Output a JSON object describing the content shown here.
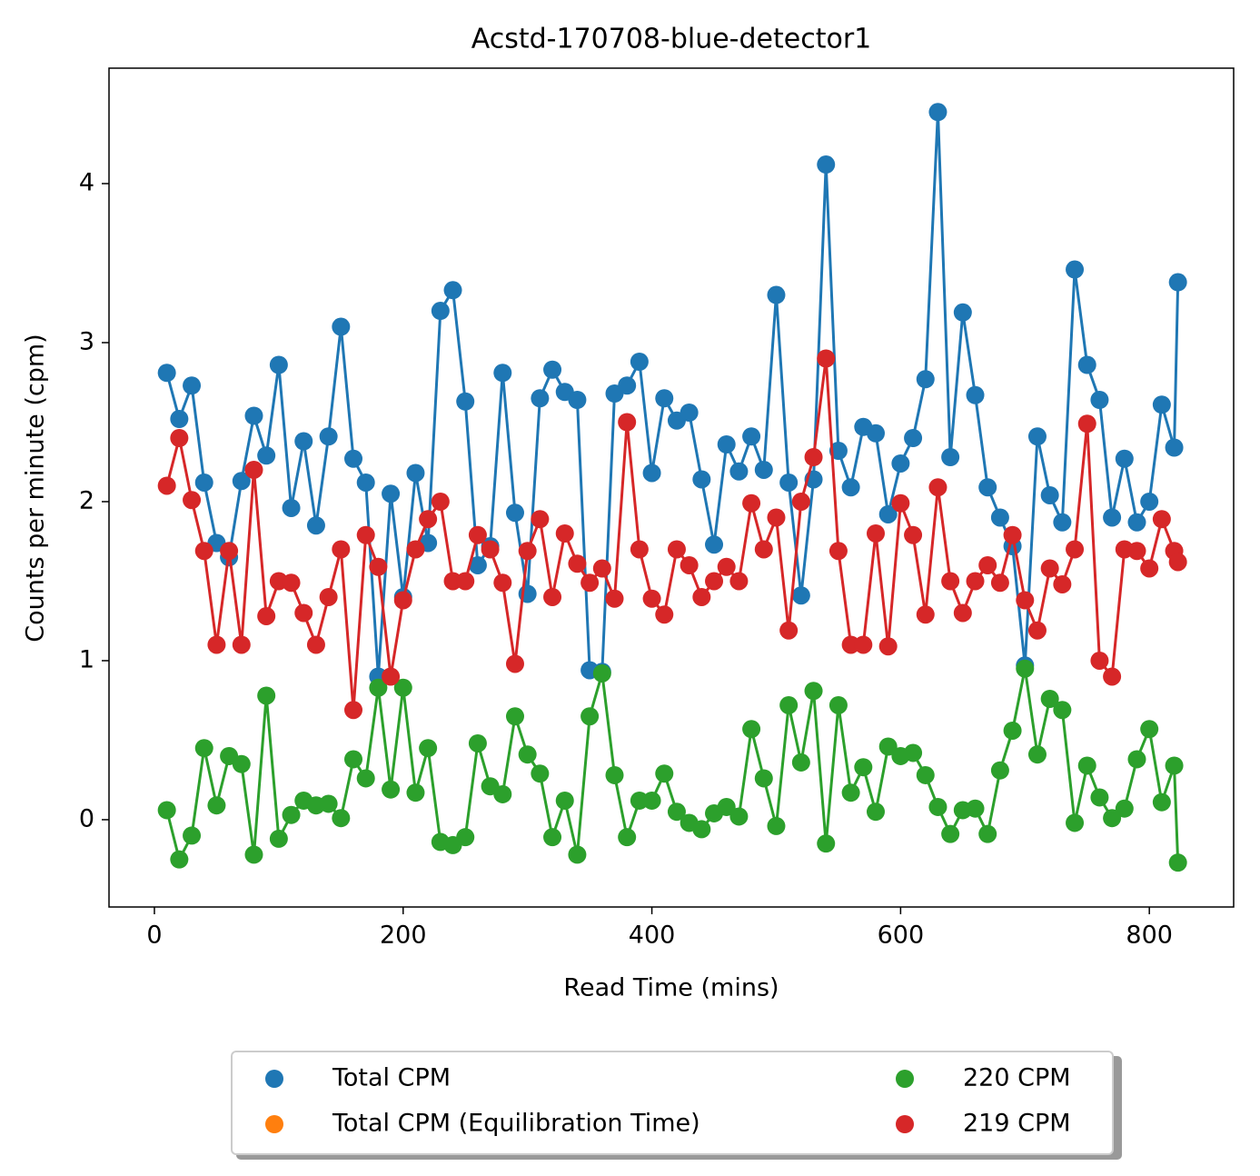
{
  "chart_data": {
    "type": "line",
    "title": "Acstd-170708-blue-detector1",
    "xlabel": "Read Time (mins)",
    "ylabel": "Counts per minute (cpm)",
    "x": [
      10,
      20,
      30,
      40,
      50,
      60,
      70,
      80,
      90,
      100,
      110,
      120,
      130,
      140,
      150,
      160,
      170,
      180,
      190,
      200,
      210,
      220,
      230,
      240,
      250,
      260,
      270,
      280,
      290,
      300,
      310,
      320,
      330,
      340,
      350,
      360,
      370,
      380,
      390,
      400,
      410,
      420,
      430,
      440,
      450,
      460,
      470,
      480,
      490,
      500,
      510,
      520,
      530,
      540,
      550,
      560,
      570,
      580,
      590,
      600,
      610,
      620,
      630,
      640,
      650,
      660,
      670,
      680,
      690,
      700,
      710,
      720,
      730,
      740,
      750,
      760,
      770,
      780,
      790,
      800,
      810,
      820,
      823
    ],
    "series": [
      {
        "name": "Total CPM",
        "color": "#1f77b4",
        "values": [
          2.81,
          2.52,
          2.73,
          2.12,
          1.74,
          1.65,
          2.13,
          2.54,
          2.29,
          2.86,
          1.96,
          2.38,
          1.85,
          2.41,
          3.1,
          2.27,
          2.12,
          0.9,
          2.05,
          1.4,
          2.18,
          1.74,
          3.2,
          3.33,
          2.63,
          1.6,
          1.72,
          2.81,
          1.93,
          1.42,
          2.65,
          2.83,
          2.69,
          2.64,
          0.94,
          0.93,
          2.68,
          2.73,
          2.88,
          2.18,
          2.65,
          2.51,
          2.56,
          2.14,
          1.73,
          2.36,
          2.19,
          2.41,
          2.2,
          3.3,
          2.12,
          1.41,
          2.14,
          4.12,
          2.32,
          2.09,
          2.47,
          2.43,
          1.92,
          2.24,
          2.4,
          2.77,
          4.45,
          2.28,
          3.19,
          2.67,
          2.09,
          1.9,
          1.72,
          0.97,
          2.41,
          2.04,
          1.87,
          3.46,
          2.86,
          2.64,
          1.9,
          2.27,
          1.87,
          2.0,
          2.61,
          2.34,
          3.38
        ]
      },
      {
        "name": "Total CPM (Equilibration Time)",
        "color": "#ff7f0e",
        "x": [],
        "values": []
      },
      {
        "name": "220 CPM",
        "color": "#2ca02c",
        "values": [
          0.06,
          -0.25,
          -0.1,
          0.45,
          0.09,
          0.4,
          0.35,
          -0.22,
          0.78,
          -0.12,
          0.03,
          0.12,
          0.09,
          0.1,
          0.01,
          0.38,
          0.26,
          0.83,
          0.19,
          0.83,
          0.17,
          0.45,
          -0.14,
          -0.16,
          -0.11,
          0.48,
          0.21,
          0.16,
          0.65,
          0.41,
          0.29,
          -0.11,
          0.12,
          -0.22,
          0.65,
          0.92,
          0.28,
          -0.11,
          0.12,
          0.12,
          0.29,
          0.05,
          -0.02,
          -0.06,
          0.04,
          0.08,
          0.02,
          0.57,
          0.26,
          -0.04,
          0.72,
          0.36,
          0.81,
          -0.15,
          0.72,
          0.17,
          0.33,
          0.05,
          0.46,
          0.4,
          0.42,
          0.28,
          0.08,
          -0.09,
          0.06,
          0.07,
          -0.09,
          0.31,
          0.56,
          0.95,
          0.41,
          0.76,
          0.69,
          -0.02,
          0.34,
          0.14,
          0.01,
          0.07,
          0.38,
          0.57,
          0.11,
          0.34,
          -0.27
        ]
      },
      {
        "name": "219 CPM",
        "color": "#d62728",
        "values": [
          2.1,
          2.4,
          2.01,
          1.69,
          1.1,
          1.69,
          1.1,
          2.2,
          1.28,
          1.5,
          1.49,
          1.3,
          1.1,
          1.4,
          1.7,
          0.69,
          1.79,
          1.59,
          0.9,
          1.38,
          1.7,
          1.89,
          2.0,
          1.5,
          1.5,
          1.79,
          1.7,
          1.49,
          0.98,
          1.69,
          1.89,
          1.4,
          1.8,
          1.61,
          1.49,
          1.58,
          1.39,
          2.5,
          1.7,
          1.39,
          1.29,
          1.7,
          1.6,
          1.4,
          1.5,
          1.59,
          1.5,
          1.99,
          1.7,
          1.9,
          1.19,
          2.0,
          2.28,
          2.9,
          1.69,
          1.1,
          1.1,
          1.8,
          1.09,
          1.99,
          1.79,
          1.29,
          2.09,
          1.5,
          1.3,
          1.5,
          1.6,
          1.49,
          1.79,
          1.38,
          1.19,
          1.58,
          1.48,
          1.7,
          2.49,
          1.0,
          0.9,
          1.7,
          1.69,
          1.58,
          1.89,
          1.69,
          1.62
        ]
      }
    ],
    "xlim": [
      -36.5,
      867.8
    ],
    "xticks": [
      0,
      200,
      400,
      600,
      800
    ],
    "ylim": [
      -0.549,
      4.726
    ],
    "yticks": [
      0,
      1,
      2,
      3,
      4
    ],
    "legend": "lower center",
    "grid": false
  }
}
